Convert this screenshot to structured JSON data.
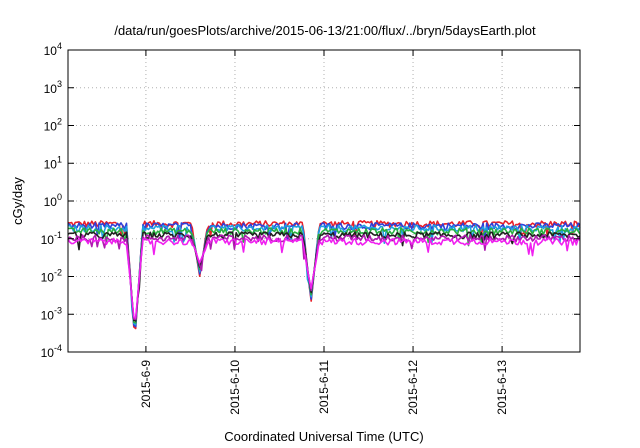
{
  "chart_data": {
    "type": "line",
    "title": "/data/run/goesPlots/archive/2015-06-13/21:00/flux/../bryn/5daysEarth.plot",
    "xlabel": "Coordinated Universal Time (UTC)",
    "ylabel": "cGy/day",
    "yscale": "log",
    "ylim": [
      0.0001,
      10000
    ],
    "xlim": [
      "2015-06-08 03:00",
      "2015-06-13 21:00"
    ],
    "grid": true,
    "x_ticks": [
      "2015-6-9",
      "2015-6-10",
      "2015-6-11",
      "2015-6-12",
      "2015-6-13"
    ],
    "y_ticks": [
      {
        "base": "10",
        "exp": "-4"
      },
      {
        "base": "10",
        "exp": "-3"
      },
      {
        "base": "10",
        "exp": "-2"
      },
      {
        "base": "10",
        "exp": "-1"
      },
      {
        "base": "10",
        "exp": "0"
      },
      {
        "base": "10",
        "exp": "1"
      },
      {
        "base": "10",
        "exp": "2"
      },
      {
        "base": "10",
        "exp": "3"
      },
      {
        "base": "10",
        "exp": "4"
      }
    ],
    "series": [
      {
        "color": "#e8202a",
        "baseline": 0.25
      },
      {
        "color": "#2f3fd8",
        "baseline": 0.22
      },
      {
        "color": "#1ea0e0",
        "baseline": 0.19
      },
      {
        "color": "#28b040",
        "baseline": 0.16
      },
      {
        "color": "#202020",
        "baseline": 0.125
      },
      {
        "color": "#b01ab0",
        "baseline": 0.105
      },
      {
        "color": "#f020f0",
        "baseline": 0.085
      }
    ],
    "dips": [
      {
        "x": "2015-06-08 21:00",
        "value": 0.0002
      },
      {
        "x": "2015-06-09 14:30",
        "value": 0.01
      },
      {
        "x": "2015-06-10 20:30",
        "value": 0.002
      }
    ]
  }
}
